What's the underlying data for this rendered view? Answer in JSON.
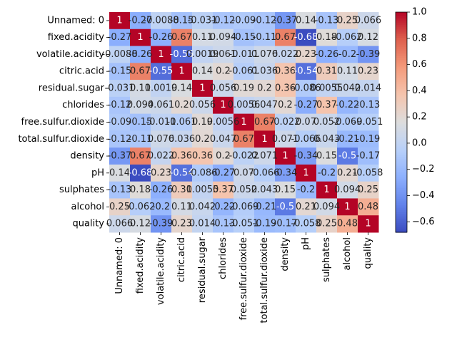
{
  "chart_data": {
    "type": "heatmap",
    "title": "",
    "xlabel": "",
    "ylabel": "",
    "labels": [
      "Unnamed: 0",
      "fixed.acidity",
      "volatile.acidity",
      "citric.acid",
      "residual.sugar",
      "chlorides",
      "free.sulfur.dioxide",
      "total.sulfur.dioxide",
      "density",
      "pH",
      "sulphates",
      "alcohol",
      "quality"
    ],
    "values": [
      [
        1,
        -0.27,
        -0.0088,
        -0.15,
        -0.031,
        -0.12,
        -0.09,
        -0.12,
        -0.37,
        0.14,
        -0.13,
        0.25,
        0.066
      ],
      [
        -0.27,
        1,
        -0.26,
        0.67,
        0.11,
        0.094,
        -0.15,
        -0.11,
        0.67,
        -0.68,
        0.18,
        -0.062,
        0.12
      ],
      [
        -0.0088,
        -0.26,
        1,
        -0.55,
        0.0019,
        0.061,
        -0.011,
        0.076,
        0.022,
        0.23,
        -0.26,
        -0.2,
        -0.39
      ],
      [
        -0.15,
        0.67,
        -0.55,
        1,
        0.14,
        0.2,
        -0.061,
        0.036,
        0.36,
        -0.54,
        0.31,
        0.11,
        0.23
      ],
      [
        -0.031,
        0.11,
        0.0019,
        0.14,
        1,
        0.056,
        0.19,
        0.2,
        0.36,
        -0.086,
        0.0055,
        0.042,
        0.014
      ],
      [
        -0.12,
        0.094,
        0.061,
        0.2,
        0.056,
        1,
        0.0056,
        0.047,
        0.2,
        -0.27,
        0.37,
        -0.22,
        -0.13
      ],
      [
        -0.09,
        -0.15,
        -0.011,
        -0.061,
        0.19,
        0.0056,
        1,
        0.67,
        -0.022,
        0.07,
        0.052,
        -0.069,
        -0.051
      ],
      [
        -0.12,
        -0.11,
        0.076,
        0.036,
        0.2,
        0.047,
        0.67,
        1,
        0.071,
        -0.066,
        0.043,
        -0.21,
        -0.19
      ],
      [
        -0.37,
        0.67,
        0.022,
        0.36,
        0.36,
        0.2,
        -0.022,
        0.071,
        1,
        -0.34,
        0.15,
        -0.5,
        -0.17
      ],
      [
        0.14,
        -0.68,
        0.23,
        -0.54,
        -0.086,
        -0.27,
        0.07,
        -0.066,
        -0.34,
        1,
        -0.2,
        0.21,
        -0.058
      ],
      [
        -0.13,
        0.18,
        -0.26,
        0.31,
        0.0055,
        0.37,
        0.052,
        0.043,
        0.15,
        -0.2,
        1,
        0.094,
        0.25
      ],
      [
        0.25,
        -0.062,
        -0.2,
        0.11,
        0.042,
        -0.22,
        -0.069,
        -0.21,
        -0.5,
        0.21,
        0.094,
        1,
        0.48
      ],
      [
        0.066,
        0.12,
        -0.39,
        0.23,
        0.014,
        -0.13,
        -0.051,
        -0.19,
        -0.17,
        -0.058,
        0.25,
        0.48,
        1
      ]
    ],
    "annotations": [
      [
        "1",
        "-0.27",
        "-0.0088",
        "-0.15",
        "-0.031",
        "-0.12",
        "-0.09",
        "-0.12",
        "-0.37",
        "0.14",
        "-0.13",
        "0.25",
        "0.066"
      ],
      [
        "-0.27",
        "1",
        "-0.26",
        "0.67",
        "0.11",
        "0.094",
        "-0.15",
        "-0.11",
        "0.67",
        "-0.68",
        "0.18",
        "-0.062",
        "0.12"
      ],
      [
        "-0.0088",
        "-0.26",
        "1",
        "-0.55",
        "0.0019",
        "0.061",
        "-0.011",
        "0.076",
        "0.022",
        "0.23",
        "-0.26",
        "-0.2",
        "-0.39"
      ],
      [
        "-0.15",
        "0.67",
        "-0.55",
        "1",
        "0.14",
        "0.2",
        "-0.061",
        "0.036",
        "0.36",
        "-0.54",
        "0.31",
        "0.11",
        "0.23"
      ],
      [
        "-0.031",
        "0.11",
        "0.0019",
        "0.14",
        "1",
        "0.056",
        "0.19",
        "0.2",
        "0.36",
        "-0.086",
        "0.0055",
        "0.042",
        "0.014"
      ],
      [
        "-0.12",
        "0.094",
        "0.061",
        "0.2",
        "0.056",
        "1",
        "0.0056",
        "0.047",
        "0.2",
        "-0.27",
        "0.37",
        "-0.22",
        "-0.13"
      ],
      [
        "-0.09",
        "-0.15",
        "-0.011",
        "-0.061",
        "0.19",
        "0.0056",
        "1",
        "0.67",
        "-0.022",
        "0.07",
        "0.052",
        "-0.069",
        "-0.051"
      ],
      [
        "-0.12",
        "-0.11",
        "0.076",
        "0.036",
        "0.2",
        "0.047",
        "0.67",
        "1",
        "0.071",
        "-0.066",
        "0.043",
        "-0.21",
        "-0.19"
      ],
      [
        "-0.37",
        "0.67",
        "0.022",
        "0.36",
        "0.36",
        "0.2",
        "-0.022",
        "0.071",
        "1",
        "-0.34",
        "0.15",
        "-0.5",
        "-0.17"
      ],
      [
        "0.14",
        "-0.68",
        "0.23",
        "-0.54",
        "-0.086",
        "-0.27",
        "0.07",
        "-0.066",
        "-0.34",
        "1",
        "-0.2",
        "0.21",
        "-0.058"
      ],
      [
        "-0.13",
        "0.18",
        "-0.26",
        "0.31",
        "0.0055",
        "0.37",
        "0.052",
        "0.043",
        "0.15",
        "-0.2",
        "1",
        "0.094",
        "0.25"
      ],
      [
        "0.25",
        "-0.062",
        "-0.2",
        "0.11",
        "0.042",
        "-0.22",
        "-0.069",
        "-0.21",
        "-0.5",
        "0.21",
        "0.094",
        "1",
        "0.48"
      ],
      [
        "0.066",
        "0.12",
        "-0.39",
        "0.23",
        "0.014",
        "-0.13",
        "-0.051",
        "-0.19",
        "-0.17",
        "-0.058",
        "0.25",
        "0.48",
        "1"
      ]
    ],
    "colormap": "coolwarm",
    "color_range": [
      -0.68,
      1.0
    ],
    "colorbar_ticks": [
      "1.0",
      "0.8",
      "0.6",
      "0.4",
      "0.2",
      "0.0",
      "−0.2",
      "−0.4",
      "−0.6"
    ],
    "colorbar_tick_values": [
      1.0,
      0.8,
      0.6,
      0.4,
      0.2,
      0.0,
      -0.2,
      -0.4,
      -0.6
    ],
    "grid": false,
    "legend": "colorbar right"
  }
}
